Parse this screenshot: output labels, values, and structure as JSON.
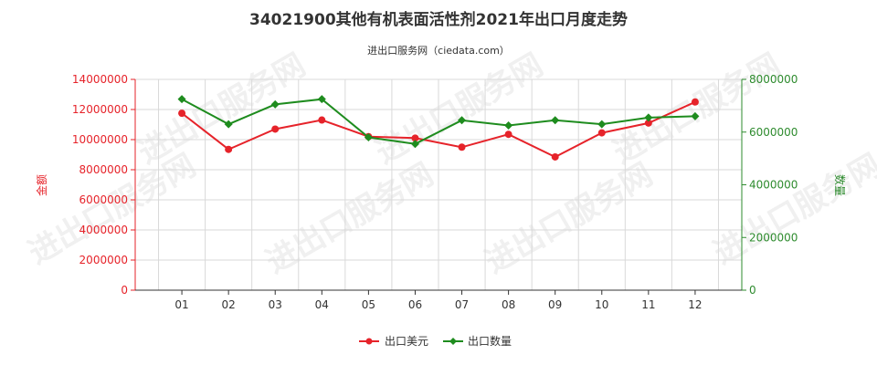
{
  "chart_data": {
    "type": "line",
    "title": "34021900其他有机表面活性剂2021年出口月度走势",
    "subtitle": "进出口服务网（ciedata.com）",
    "categories": [
      "01",
      "02",
      "03",
      "04",
      "05",
      "06",
      "07",
      "08",
      "09",
      "10",
      "11",
      "12"
    ],
    "y_left": {
      "label": "金额",
      "range": [
        0,
        14000000
      ],
      "ticks": [
        "0",
        "2000000",
        "4000000",
        "6000000",
        "8000000",
        "10000000",
        "12000000",
        "14000000"
      ]
    },
    "y_right": {
      "label": "数量",
      "range": [
        0,
        8000000
      ],
      "ticks": [
        "0",
        "2000000",
        "4000000",
        "6000000",
        "8000000"
      ]
    },
    "series": [
      {
        "name": "出口美元",
        "axis": "left",
        "color": "#e6232a",
        "marker": "circle",
        "values": [
          11750000,
          9350000,
          10700000,
          11300000,
          10200000,
          10100000,
          9500000,
          10350000,
          8850000,
          10450000,
          11100000,
          12500000
        ]
      },
      {
        "name": "出口数量",
        "axis": "right",
        "color": "#1e8c1e",
        "marker": "diamond",
        "values": [
          7250000,
          6300000,
          7050000,
          7250000,
          5800000,
          5550000,
          6450000,
          6250000,
          6450000,
          6300000,
          6550000,
          6600000
        ]
      }
    ],
    "grid": true,
    "legend_position": "bottom-center"
  },
  "watermark": "进出口服务网"
}
